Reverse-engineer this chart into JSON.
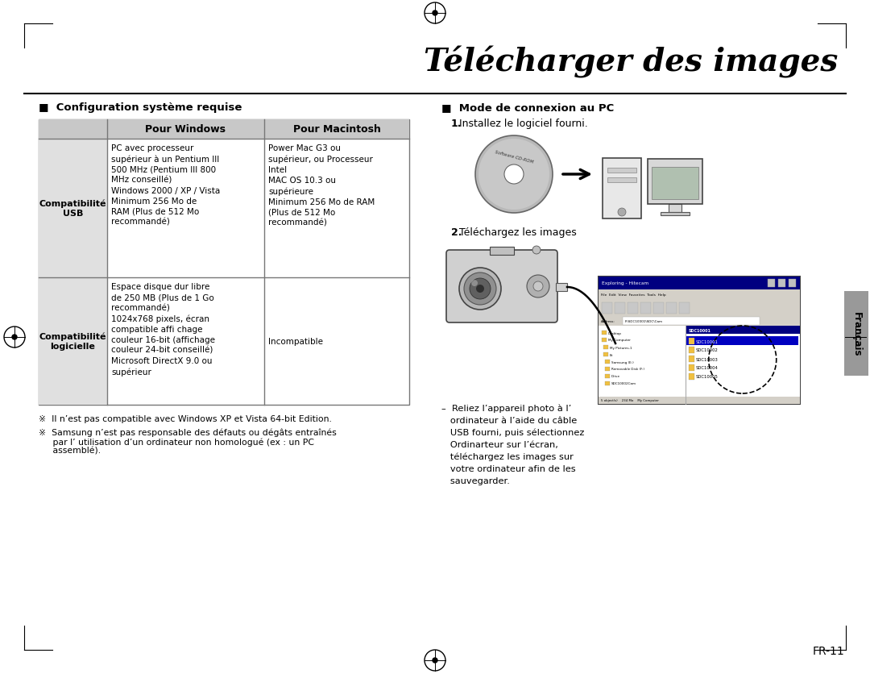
{
  "title": "Télécharger des images",
  "section1_header": "■  Configuration système requise",
  "section2_header": "■  Mode de connexion au PC",
  "row1_label_line1": "Compatibilité",
  "row1_label_line2": "USB",
  "row1_windows": "PC avec processeur\nsupérieur à un Pentium III\n500 MHz (Pentium III 800\nMHz conseillé)\nWindows 2000 / XP / Vista\nMinimum 256 Mo de\nRAM (Plus de 512 Mo\nrecommandé)",
  "row1_mac": "Power Mac G3 ou\nsupérieur, ou Processeur\nIntel\nMAC OS 10.3 ou\nsupérieure\nMinimum 256 Mo de RAM\n(Plus de 512 Mo\nrecommandé)",
  "row2_label_line1": "Compatibilité",
  "row2_label_line2": "logicielle",
  "row2_windows": "Espace disque dur libre\nde 250 MB (Plus de 1 Go\nrecommandé)\n1024x768 pixels, écran\ncompatible affi chage\ncouleur 16-bit (affichage\ncouleur 24-bit conseillé)\nMicrosoft DirectX 9.0 ou\nsupérieur",
  "row2_mac": "Incompatible",
  "note1": "※  Il n’est pas compatible avec Windows XP et Vista 64-bit Edition.",
  "note2_line1": "※  Samsung n’est pas responsable des défauts ou dégâts entraînés",
  "note2_line2": "     par l’ utilisation d’un ordinateur non homologué (ex : un PC",
  "note2_line3": "     assemblé).",
  "step1_num": "1.",
  "step1_text": " Installez le logiciel fourni.",
  "step2_num": "2.",
  "step2_text": " Téléchargez les images",
  "bullet_line1": "–  Reliez l’appareil photo à l’",
  "bullet_line2": "   ordinateur à l’aide du câble",
  "bullet_line3": "   USB fourni, puis sélectionnez",
  "bullet_line4": "   Ordinarteur sur l’écran,",
  "bullet_line5": "   téléchargez les images sur",
  "bullet_line6": "   votre ordinateur afin de les",
  "bullet_line7": "   sauvegarder.",
  "francais_label": "Français",
  "fr_label": "FR-11",
  "bg_color": "#ffffff",
  "table_header_bg": "#c8c8c8",
  "table_label_bg": "#e0e0e0",
  "table_border_color": "#777777",
  "title_color": "#000000",
  "text_color": "#000000",
  "sidebar_color": "#999999",
  "cd_label": "Software CD-ROM"
}
